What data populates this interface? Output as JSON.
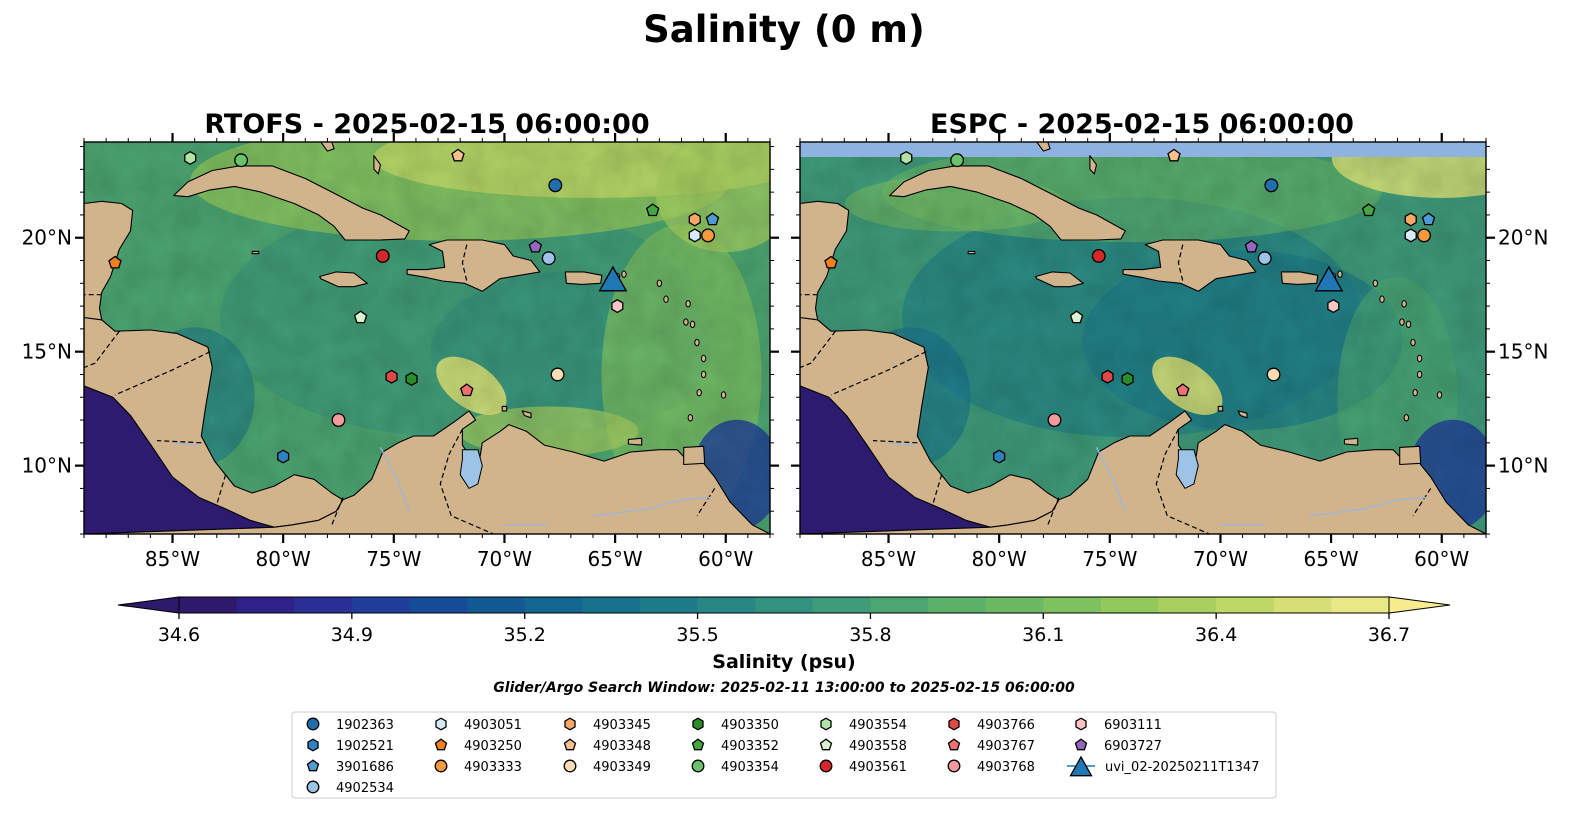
{
  "title": "Salinity (0 m)",
  "panels": [
    {
      "title": "RTOFS - 2025-02-15 06:00:00",
      "model": "RTOFS"
    },
    {
      "title": "ESPC - 2025-02-15 06:00:00",
      "model": "ESPC"
    }
  ],
  "map": {
    "lon_range": [
      -89,
      -58
    ],
    "lat_range": [
      7,
      24.2
    ],
    "lon_ticks": [
      -85,
      -80,
      -75,
      -70,
      -65,
      -60
    ],
    "lon_tick_labels": [
      "85°W",
      "80°W",
      "75°W",
      "70°W",
      "65°W",
      "60°W"
    ],
    "lat_ticks": [
      10,
      15,
      20
    ],
    "lat_tick_labels": [
      "10°N",
      "15°N",
      "20°N"
    ],
    "land_color": "#d2b48c",
    "pacific_color": "#2c1b6e",
    "espc_nodata_color": "#8fb3e0"
  },
  "colorbar": {
    "label": "Salinity (psu)",
    "min": 34.6,
    "max": 36.7,
    "tick_values": [
      34.6,
      34.9,
      35.2,
      35.5,
      35.8,
      36.1,
      36.4,
      36.7
    ],
    "tick_labels": [
      "34.6",
      "34.9",
      "35.2",
      "35.5",
      "35.8",
      "36.1",
      "36.4",
      "36.7"
    ],
    "colors": [
      "#2d1a6b",
      "#2e2288",
      "#2a2f96",
      "#1f3d99",
      "#164c97",
      "#125a94",
      "#136690",
      "#17718c",
      "#1e7c88",
      "#288784",
      "#33917f",
      "#3f9b79",
      "#4ca671",
      "#5bb06a",
      "#6cb964",
      "#7fc15f",
      "#93c95c",
      "#a8d05f",
      "#bfd868",
      "#d6df75",
      "#eae787"
    ],
    "extend_high_color": "#f8eb90",
    "extend_low_color": "#2d1a6b"
  },
  "search_window": "Glider/Argo Search Window: 2025-02-11 13:00:00 to 2025-02-15 06:00:00",
  "legend": {
    "columns": [
      [
        {
          "label": "1902363",
          "marker": "circle",
          "color": "#1f6fae"
        },
        {
          "label": "1902521",
          "marker": "hexagon",
          "color": "#2f82c0"
        },
        {
          "label": "3901686",
          "marker": "pentagon",
          "color": "#4f9bd4"
        },
        {
          "label": "4902534",
          "marker": "circle",
          "color": "#9dc3e6"
        }
      ],
      [
        {
          "label": "4903051",
          "marker": "hexagon",
          "color": "#d6ebfa"
        },
        {
          "label": "4903250",
          "marker": "pentagon",
          "color": "#f07f1e"
        },
        {
          "label": "4903333",
          "marker": "circle",
          "color": "#f59a3c"
        }
      ],
      [
        {
          "label": "4903345",
          "marker": "hexagon",
          "color": "#f6a763"
        },
        {
          "label": "4903348",
          "marker": "pentagon",
          "color": "#f8c08e"
        },
        {
          "label": "4903349",
          "marker": "circle",
          "color": "#fddcb5"
        }
      ],
      [
        {
          "label": "4903350",
          "marker": "hexagon",
          "color": "#2a8c2a"
        },
        {
          "label": "4903352",
          "marker": "pentagon",
          "color": "#43a843"
        },
        {
          "label": "4903354",
          "marker": "circle",
          "color": "#6bc36b"
        }
      ],
      [
        {
          "label": "4903554",
          "marker": "hexagon",
          "color": "#b2e3a6"
        },
        {
          "label": "4903558",
          "marker": "pentagon",
          "color": "#d9f2cf"
        },
        {
          "label": "4903561",
          "marker": "circle",
          "color": "#d62728"
        }
      ],
      [
        {
          "label": "4903766",
          "marker": "hexagon",
          "color": "#e04848"
        },
        {
          "label": "4903767",
          "marker": "pentagon",
          "color": "#f07070"
        },
        {
          "label": "4903768",
          "marker": "circle",
          "color": "#f59a9a"
        }
      ],
      [
        {
          "label": "6903111",
          "marker": "hexagon",
          "color": "#fbc4c4"
        },
        {
          "label": "6903727",
          "marker": "pentagon",
          "color": "#9467bd"
        },
        {
          "label": "uvi_02-20250211T1347",
          "marker": "triangle",
          "color": "#1f77b4"
        }
      ]
    ]
  },
  "platforms": [
    {
      "id": "1902363",
      "lon": -67.7,
      "lat": 22.3,
      "marker": "circle",
      "color": "#1f6fae"
    },
    {
      "id": "1902521",
      "lon": -80.0,
      "lat": 10.4,
      "marker": "hexagon",
      "color": "#2f82c0"
    },
    {
      "id": "3901686",
      "lon": -60.6,
      "lat": 20.8,
      "marker": "pentagon",
      "color": "#4f9bd4"
    },
    {
      "id": "4902534",
      "lon": -68.0,
      "lat": 19.1,
      "marker": "circle",
      "color": "#9dc3e6"
    },
    {
      "id": "4903051",
      "lon": -61.4,
      "lat": 20.1,
      "marker": "hexagon",
      "color": "#d6ebfa"
    },
    {
      "id": "4903250",
      "lon": -87.6,
      "lat": 18.9,
      "marker": "pentagon",
      "color": "#f07f1e"
    },
    {
      "id": "4903333",
      "lon": -60.8,
      "lat": 20.1,
      "marker": "circle",
      "color": "#f59a3c"
    },
    {
      "id": "4903345",
      "lon": -61.4,
      "lat": 20.8,
      "marker": "hexagon",
      "color": "#f6a763"
    },
    {
      "id": "4903348",
      "lon": -72.1,
      "lat": 23.6,
      "marker": "pentagon",
      "color": "#f8c08e"
    },
    {
      "id": "4903349",
      "lon": -67.6,
      "lat": 14.0,
      "marker": "circle",
      "color": "#fddcb5"
    },
    {
      "id": "4903350",
      "lon": -74.2,
      "lat": 13.8,
      "marker": "hexagon",
      "color": "#2a8c2a"
    },
    {
      "id": "4903352",
      "lon": -63.3,
      "lat": 21.2,
      "marker": "pentagon",
      "color": "#43a843"
    },
    {
      "id": "4903354",
      "lon": -81.9,
      "lat": 23.4,
      "marker": "circle",
      "color": "#6bc36b"
    },
    {
      "id": "4903554",
      "lon": -84.2,
      "lat": 23.5,
      "marker": "hexagon",
      "color": "#b2e3a6"
    },
    {
      "id": "4903558",
      "lon": -76.5,
      "lat": 16.5,
      "marker": "pentagon",
      "color": "#d9f2cf"
    },
    {
      "id": "4903561",
      "lon": -75.5,
      "lat": 19.2,
      "marker": "circle",
      "color": "#d62728"
    },
    {
      "id": "4903766",
      "lon": -75.1,
      "lat": 13.9,
      "marker": "hexagon",
      "color": "#e04848"
    },
    {
      "id": "4903767",
      "lon": -71.7,
      "lat": 13.3,
      "marker": "pentagon",
      "color": "#f07070"
    },
    {
      "id": "4903768",
      "lon": -77.5,
      "lat": 12.0,
      "marker": "circle",
      "color": "#f59a9a"
    },
    {
      "id": "6903111",
      "lon": -64.9,
      "lat": 17.0,
      "marker": "hexagon",
      "color": "#fbc4c4"
    },
    {
      "id": "6903727",
      "lon": -68.6,
      "lat": 19.6,
      "marker": "pentagon",
      "color": "#9467bd"
    },
    {
      "id": "uvi_02-20250211T1347",
      "lon": -65.1,
      "lat": 18.1,
      "marker": "triangle",
      "color": "#1f77b4"
    }
  ]
}
